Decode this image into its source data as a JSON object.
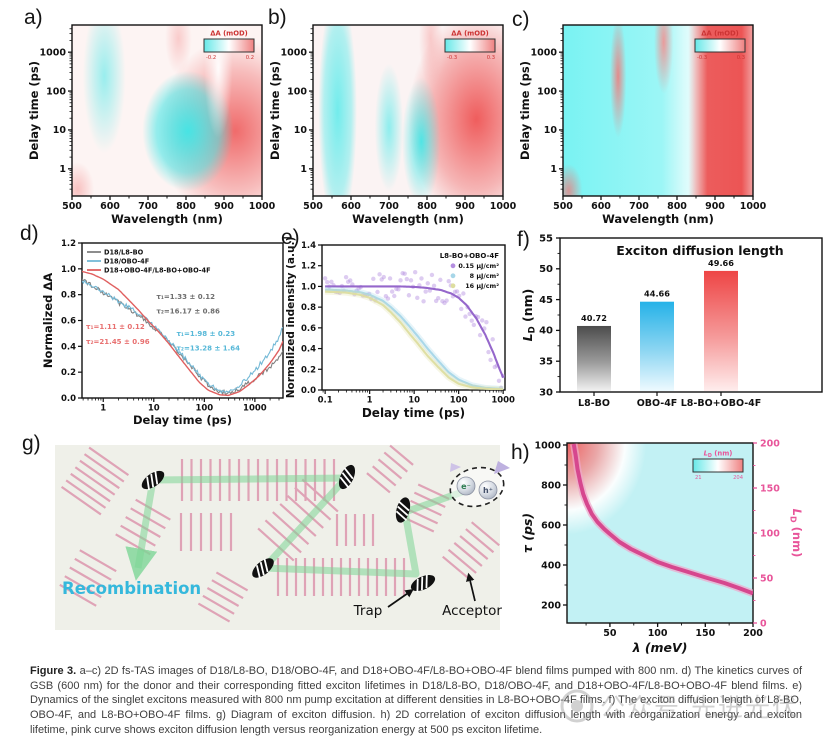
{
  "caption": {
    "label": "Figure 3.",
    "text": " a–c) 2D fs-TAS images of D18/L8-BO, D18/OBO-4F, and D18+OBO-4F/L8-BO+OBO-4F blend films pumped with 800 nm. d) The kinetics curves of GSB (600 nm) for the donor and their corresponding fitted exciton lifetimes in D18/L8-BO, D18/OBO-4F, and D18+OBO-4F/L8-BO+OBO-4F blend films. e) Dynamics of the singlet excitons measured with 800 nm pump excitation at different densities in L8-BO+OBO-4F films. f) The exciton diffusion length of L8-BO, OBO-4F, and L8-BO+OBO-4F films. g) Diagram of exciton diffusion. h) 2D correlation of exciton diffusion length with reorganization energy and exciton lifetime, pink curve shows exciton diffusion length versus reorganization energy at 500 ps exciton lifetime."
  },
  "watermark": {
    "text": "公众号 先进光伏"
  },
  "chart_data": [
    {
      "id": "a",
      "type": "heatmap",
      "letter": "a)",
      "xlabel": "Wavelength (nm)",
      "ylabel": "Delay time (ps)",
      "xticks": [
        500,
        600,
        700,
        800,
        900,
        1000
      ],
      "xrange": [
        500,
        1000
      ],
      "yticks": [
        1,
        10,
        100,
        1000
      ],
      "yrange": [
        0.2,
        5000
      ],
      "colorbar": {
        "label": "ΔA (mOD)",
        "min": "-0.2",
        "max": "0.2"
      },
      "regions": "cyan GSB band ~560–620 nm (upper), cyan bleach blob 680–840 nm, red PIA band 850–1000 nm"
    },
    {
      "id": "b",
      "type": "heatmap",
      "letter": "b)",
      "xlabel": "Wavelength (nm)",
      "ylabel": "Delay time (ps)",
      "xticks": [
        500,
        600,
        700,
        800,
        900,
        1000
      ],
      "xrange": [
        500,
        1000
      ],
      "yticks": [
        1,
        10,
        100,
        1000
      ],
      "yrange": [
        0.2,
        5000
      ],
      "colorbar": {
        "label": "ΔA (mOD)",
        "min": "-0.3",
        "max": "0.3"
      },
      "regions": "cyan band 540–600 nm full delay range, cyan blobs ~700 nm and 760–820 nm, strong red band 840–950 nm"
    },
    {
      "id": "c",
      "type": "heatmap",
      "letter": "c)",
      "xlabel": "Wavelength (nm)",
      "ylabel": "Delay time (ps)",
      "xticks": [
        500,
        600,
        700,
        800,
        900,
        1000
      ],
      "xrange": [
        500,
        1000
      ],
      "yticks": [
        1,
        10,
        100,
        1000
      ],
      "yrange": [
        0.2,
        5000
      ],
      "colorbar": {
        "label": "ΔA (mOD)",
        "min": "-0.3",
        "max": "0.3"
      },
      "regions": "broad cyan 500–840 nm, thin red stripes ~640 nm and ~760 nm (early/late), strong red band 850–1000 nm"
    },
    {
      "id": "d",
      "type": "line",
      "letter": "d)",
      "xlabel": "Delay time (ps)",
      "ylabel": "Normalized ΔA",
      "xticks": [
        1,
        10,
        100,
        1000
      ],
      "xrange": [
        0.38,
        3600
      ],
      "xlog": true,
      "yticks": [
        0.0,
        0.2,
        0.4,
        0.6,
        0.8,
        1.0,
        1.2
      ],
      "yrange": [
        0,
        1.2
      ],
      "legend": [
        {
          "label": "D18/L8-BO",
          "color": "#808080"
        },
        {
          "label": "D18/OBO-4F",
          "color": "#74b9d6"
        },
        {
          "label": "D18+OBO-4F/L8-BO+OBO-4F",
          "color": "#e06060"
        }
      ],
      "annotations": [
        {
          "text": "τ₁=1.33 ± 0.12",
          "color": "#6e6e6e",
          "fx": 0.37,
          "fy": 0.36
        },
        {
          "text": "τ₂=16.17 ± 0.86",
          "color": "#6e6e6e",
          "fx": 0.37,
          "fy": 0.455
        },
        {
          "text": "τ₁=1.98 ± 0.23",
          "color": "#57b8d8",
          "fx": 0.47,
          "fy": 0.6
        },
        {
          "text": "τ₂=13.28 ± 1.64",
          "color": "#57b8d8",
          "fx": 0.47,
          "fy": 0.695
        },
        {
          "text": "τ₁=1.11 ± 0.12",
          "color": "#e87070",
          "fx": 0.02,
          "fy": 0.555
        },
        {
          "text": "τ₂=21.45 ± 0.96",
          "color": "#e87070",
          "fx": 0.02,
          "fy": 0.65
        }
      ],
      "series": [
        {
          "name": "D18/L8-BO",
          "color": "#808080",
          "noisy": true,
          "points": [
            [
              0.3,
              0.93
            ],
            [
              0.6,
              0.87
            ],
            [
              1,
              0.81
            ],
            [
              2,
              0.74
            ],
            [
              3,
              0.7
            ],
            [
              5,
              0.64
            ],
            [
              8,
              0.58
            ],
            [
              12,
              0.52
            ],
            [
              20,
              0.43
            ],
            [
              30,
              0.36
            ],
            [
              50,
              0.26
            ],
            [
              80,
              0.17
            ],
            [
              120,
              0.1
            ],
            [
              200,
              0.05
            ],
            [
              300,
              0.035
            ],
            [
              500,
              0.07
            ],
            [
              800,
              0.12
            ],
            [
              1200,
              0.17
            ],
            [
              2000,
              0.24
            ],
            [
              3000,
              0.31
            ],
            [
              3600,
              0.36
            ]
          ]
        },
        {
          "name": "D18/OBO-4F",
          "color": "#74b9d6",
          "noisy": true,
          "points": [
            [
              0.3,
              0.92
            ],
            [
              0.6,
              0.87
            ],
            [
              1,
              0.82
            ],
            [
              2,
              0.75
            ],
            [
              3,
              0.71
            ],
            [
              5,
              0.65
            ],
            [
              8,
              0.59
            ],
            [
              12,
              0.53
            ],
            [
              20,
              0.44
            ],
            [
              30,
              0.37
            ],
            [
              50,
              0.27
            ],
            [
              80,
              0.18
            ],
            [
              120,
              0.11
            ],
            [
              200,
              0.055
            ],
            [
              300,
              0.05
            ],
            [
              500,
              0.1
            ],
            [
              800,
              0.17
            ],
            [
              1200,
              0.25
            ],
            [
              2000,
              0.36
            ],
            [
              3000,
              0.47
            ],
            [
              3600,
              0.55
            ]
          ]
        },
        {
          "name": "D18+OBO-4F/L8-BO+OBO-4F",
          "color": "#e06060",
          "noisy": false,
          "points": [
            [
              0.3,
              0.99
            ],
            [
              0.6,
              0.96
            ],
            [
              1,
              0.92
            ],
            [
              2,
              0.84
            ],
            [
              3,
              0.77
            ],
            [
              5,
              0.68
            ],
            [
              8,
              0.59
            ],
            [
              12,
              0.52
            ],
            [
              20,
              0.42
            ],
            [
              30,
              0.33
            ],
            [
              50,
              0.22
            ],
            [
              80,
              0.12
            ],
            [
              120,
              0.06
            ],
            [
              200,
              0.025
            ],
            [
              300,
              0.02
            ],
            [
              500,
              0.05
            ],
            [
              800,
              0.11
            ],
            [
              1200,
              0.17
            ],
            [
              2000,
              0.27
            ],
            [
              3000,
              0.37
            ],
            [
              3600,
              0.44
            ]
          ]
        }
      ]
    },
    {
      "id": "e",
      "type": "line",
      "letter": "e)",
      "xlabel": "Delay time (ps)",
      "ylabel": "Normalized indensity (a.u.)",
      "xticks": [
        0.1,
        1,
        10,
        100,
        1000
      ],
      "xrange": [
        0.085,
        1100
      ],
      "xlog": true,
      "yticks": [
        0.0,
        0.2,
        0.4,
        0.6,
        0.8,
        1.0,
        1.2,
        1.4
      ],
      "yrange": [
        0,
        1.4
      ],
      "legend_title": "L8-BO+OBO-4F",
      "series": [
        {
          "name": "0.15 μJ/cm²",
          "color": "#8f5fc8",
          "scatter": true,
          "scatter_color": "#b48ee0",
          "points": [
            [
              0.1,
              1.0
            ],
            [
              1,
              1.0
            ],
            [
              5,
              1.0
            ],
            [
              10,
              0.995
            ],
            [
              20,
              0.985
            ],
            [
              40,
              0.965
            ],
            [
              70,
              0.93
            ],
            [
              100,
              0.89
            ],
            [
              150,
              0.82
            ],
            [
              250,
              0.69
            ],
            [
              400,
              0.53
            ],
            [
              600,
              0.36
            ],
            [
              800,
              0.22
            ],
            [
              1000,
              0.12
            ]
          ]
        },
        {
          "name": "8 μJ/cm²",
          "color": "#a7d6e8",
          "glow": true,
          "points": [
            [
              0.1,
              0.97
            ],
            [
              0.3,
              0.96
            ],
            [
              0.6,
              0.945
            ],
            [
              1,
              0.92
            ],
            [
              2,
              0.86
            ],
            [
              3,
              0.8
            ],
            [
              5,
              0.71
            ],
            [
              8,
              0.61
            ],
            [
              12,
              0.52
            ],
            [
              20,
              0.4
            ],
            [
              35,
              0.28
            ],
            [
              60,
              0.17
            ],
            [
              100,
              0.1
            ],
            [
              200,
              0.045
            ],
            [
              400,
              0.02
            ],
            [
              1000,
              0.01
            ]
          ]
        },
        {
          "name": "16 μJ/cm²",
          "color": "#ddddA0",
          "glow": true,
          "points": [
            [
              0.1,
              0.95
            ],
            [
              0.3,
              0.94
            ],
            [
              0.6,
              0.92
            ],
            [
              1,
              0.89
            ],
            [
              2,
              0.82
            ],
            [
              3,
              0.75
            ],
            [
              5,
              0.65
            ],
            [
              8,
              0.54
            ],
            [
              12,
              0.45
            ],
            [
              20,
              0.33
            ],
            [
              35,
              0.22
            ],
            [
              60,
              0.12
            ],
            [
              100,
              0.06
            ],
            [
              200,
              0.025
            ],
            [
              400,
              0.012
            ],
            [
              1000,
              0.006
            ]
          ]
        }
      ]
    },
    {
      "id": "f",
      "type": "bar",
      "letter": "f)",
      "title": "Exciton diffusion length",
      "ylabel_parts": {
        "pre": "L",
        "sub": "D",
        "post": " (nm)"
      },
      "categories": [
        "L8-BO",
        "OBO-4F",
        "L8-BO+OBO-4F"
      ],
      "values": [
        40.72,
        44.66,
        49.66
      ],
      "value_labels": [
        "40.72",
        "44.66",
        "49.66"
      ],
      "bar_colors_top": [
        "#4c4c4c",
        "#25b2e8",
        "#ee4545"
      ],
      "yticks": [
        30,
        35,
        40,
        45,
        50,
        55
      ],
      "yrange": [
        30,
        55
      ]
    },
    {
      "id": "g",
      "type": "diagram",
      "letter": "g)",
      "labels": {
        "recombination": "Recombination",
        "trap": "Trap",
        "acceptor": "Acceptor",
        "electron": "e⁻",
        "hole": "h⁺"
      },
      "colors": {
        "recombination": "#35b8dc",
        "path": "#8fdc9e",
        "hatch": "#dfa3b6"
      },
      "hatch_groups": [
        {
          "cx": 95,
          "cy": 481,
          "angle": -55,
          "n": 7,
          "len": 48,
          "gap": 8
        },
        {
          "cx": 258,
          "cy": 480,
          "angle": 0,
          "n": 17,
          "len": 42,
          "gap": 9.5
        },
        {
          "cx": 143,
          "cy": 527,
          "angle": -60,
          "n": 5,
          "len": 40,
          "gap": 10
        },
        {
          "cx": 206,
          "cy": 532,
          "angle": 0,
          "n": 6,
          "len": 38,
          "gap": 10
        },
        {
          "cx": 298,
          "cy": 520,
          "angle": -48,
          "n": 7,
          "len": 48,
          "gap": 11
        },
        {
          "cx": 88,
          "cy": 578,
          "angle": -60,
          "n": 5,
          "len": 42,
          "gap": 10
        },
        {
          "cx": 223,
          "cy": 597,
          "angle": -60,
          "n": 5,
          "len": 36,
          "gap": 9
        },
        {
          "cx": 341,
          "cy": 577,
          "angle": 0,
          "n": 15,
          "len": 38,
          "gap": 9
        },
        {
          "cx": 390,
          "cy": 469,
          "angle": -50,
          "n": 5,
          "len": 30,
          "gap": 9
        },
        {
          "cx": 426,
          "cy": 508,
          "angle": -65,
          "n": 5,
          "len": 34,
          "gap": 9
        },
        {
          "cx": 471,
          "cy": 551,
          "angle": -50,
          "n": 6,
          "len": 36,
          "gap": 9
        },
        {
          "cx": 355,
          "cy": 530,
          "angle": 0,
          "n": 5,
          "len": 32,
          "gap": 9
        }
      ],
      "traps": [
        [
          153,
          480,
          -35
        ],
        [
          347,
          477,
          -65
        ],
        [
          263,
          568,
          -40
        ],
        [
          403,
          510,
          -75
        ],
        [
          423,
          583,
          -25
        ]
      ],
      "path_points": [
        [
          468,
          490
        ],
        [
          405,
          512
        ],
        [
          416,
          574
        ],
        [
          264,
          568
        ],
        [
          346,
          478
        ],
        [
          153,
          480
        ],
        [
          138,
          568
        ]
      ],
      "eh": {
        "cx": 477,
        "cy": 487
      }
    },
    {
      "id": "h",
      "type": "heatmap-line",
      "letter": "h)",
      "xlabel": "λ (meV)",
      "ylabel": "τ (ps)",
      "ylabel_right_parts": {
        "pre": "L",
        "sub": "D",
        "post": " (nm)"
      },
      "xticks": [
        50,
        100,
        150,
        200
      ],
      "xrange": [
        5,
        200
      ],
      "yticks": [
        200,
        400,
        600,
        800,
        1000
      ],
      "yrange": [
        110,
        1010
      ],
      "yticks_right": [
        0,
        50,
        100,
        150,
        200
      ],
      "yrange_right": [
        0,
        200
      ],
      "colorbar": {
        "label_parts": {
          "pre": "L",
          "sub": "D",
          "post": " (nm)"
        },
        "min": "21",
        "max": "204"
      },
      "curve_color": "#d6478e",
      "curve": [
        [
          12,
          1005
        ],
        [
          14,
          950
        ],
        [
          16,
          880
        ],
        [
          19,
          810
        ],
        [
          22,
          755
        ],
        [
          26,
          705
        ],
        [
          31,
          655
        ],
        [
          37,
          615
        ],
        [
          44,
          580
        ],
        [
          50,
          555
        ],
        [
          60,
          515
        ],
        [
          72,
          480
        ],
        [
          85,
          450
        ],
        [
          100,
          415
        ],
        [
          115,
          390
        ],
        [
          130,
          368
        ],
        [
          150,
          338
        ],
        [
          170,
          310
        ],
        [
          185,
          285
        ],
        [
          200,
          258
        ]
      ],
      "regions": "red region at low reorganization energy / long lifetime (top-left) fading to cyan elsewhere"
    }
  ]
}
